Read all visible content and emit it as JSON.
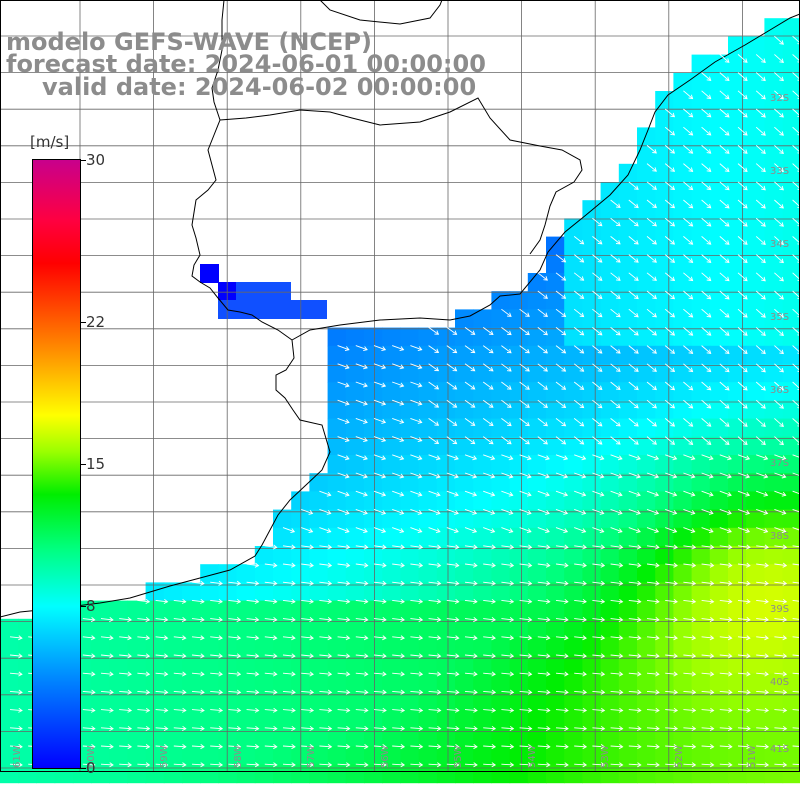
{
  "titles": {
    "line1": "modelo GEFS-WAVE (NCEP)",
    "line2": "forecast date: 2024-06-01 00:00:00",
    "line3": "valid date: 2024-06-02 00:00:00"
  },
  "legend": {
    "unit": "[m/s]",
    "ticks": [
      {
        "label": "30",
        "value": 30
      },
      {
        "label": "22",
        "value": 22
      },
      {
        "label": "15",
        "value": 15
      },
      {
        "label": "8",
        "value": 8
      },
      {
        "label": "0",
        "value": 0
      }
    ],
    "min": 0,
    "max": 30
  },
  "map": {
    "lat_labels": [
      "32S",
      "33S",
      "34S",
      "35S",
      "36S",
      "37S",
      "38S",
      "39S",
      "40S",
      "41S"
    ],
    "lon_labels": [
      "61W",
      "60W",
      "59W",
      "58W",
      "57W",
      "56W",
      "55W",
      "54W",
      "53W",
      "52W",
      "51W"
    ]
  },
  "colors": {
    "land": "#ffffff",
    "grid": "#555555",
    "coast": "#000000",
    "title": "#8c8c8c"
  }
}
